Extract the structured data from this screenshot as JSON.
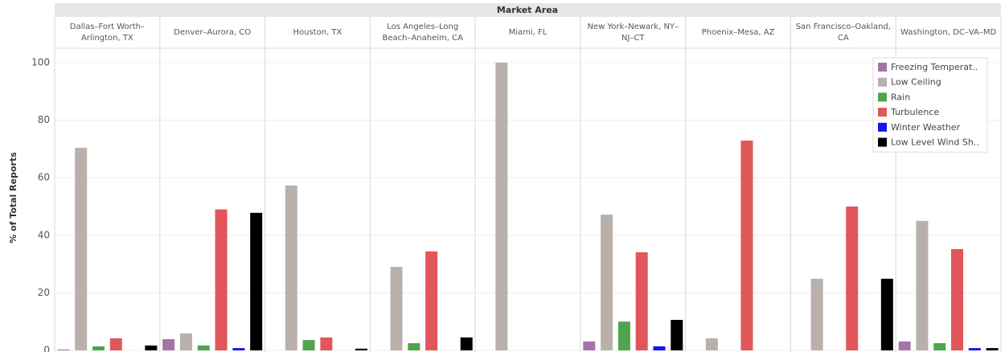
{
  "chart_data": {
    "type": "bar",
    "x_label": "Market Area",
    "y_label": "% of Total Reports",
    "categories": [
      "Dallas–Fort Worth–Arlington, TX",
      "Denver–Aurora, CO",
      "Houston, TX",
      "Los Angeles–Long Beach–Anaheim, CA",
      "Miami, FL",
      "New York–Newark, NY–NJ–CT",
      "Phoenix–Mesa, AZ",
      "San Francisco–Oakland, CA",
      "Washington, DC–VA–MD"
    ],
    "series": [
      {
        "name": "Freezing Temperat..",
        "color": "#a673a8",
        "values": [
          0.3,
          3.9,
          0,
          0,
          0,
          3.1,
          0,
          0,
          3.1
        ]
      },
      {
        "name": "Low Ceiling",
        "color": "#bab0ab",
        "values": [
          70.4,
          5.9,
          57.3,
          29,
          100,
          47.2,
          4.2,
          24.9,
          45
        ]
      },
      {
        "name": "Rain",
        "color": "#4fa54b",
        "values": [
          1.4,
          1.7,
          3.6,
          2.5,
          0,
          10,
          0,
          0,
          2.5
        ]
      },
      {
        "name": "Turbulence",
        "color": "#e15659",
        "values": [
          4.2,
          49,
          4.5,
          34.4,
          0,
          34.1,
          72.9,
          50,
          35.2
        ]
      },
      {
        "name": "Winter Weather",
        "color": "#1414f0",
        "values": [
          0,
          0.8,
          0,
          0,
          0,
          1.4,
          0,
          0,
          0.8
        ]
      },
      {
        "name": "Low Level Wind Sh..",
        "color": "#000000",
        "values": [
          1.7,
          47.8,
          0.6,
          4.5,
          0,
          10.6,
          0,
          24.9,
          0.8
        ]
      }
    ],
    "ylim": [
      0,
      105
    ],
    "yticks": [
      0,
      20,
      40,
      60,
      80,
      100
    ],
    "grid": true,
    "legend": "top-right"
  }
}
